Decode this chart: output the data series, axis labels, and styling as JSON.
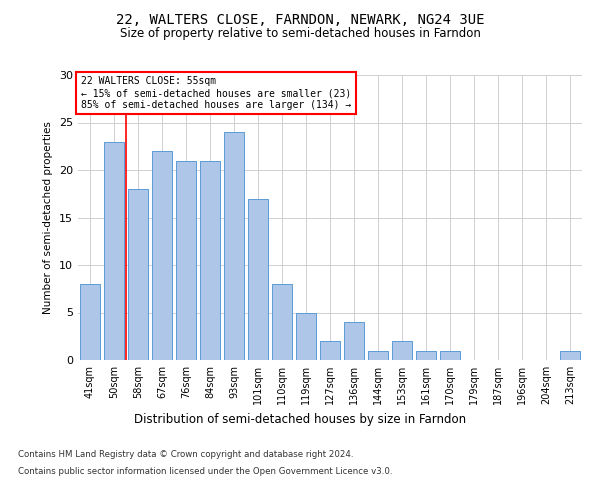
{
  "title": "22, WALTERS CLOSE, FARNDON, NEWARK, NG24 3UE",
  "subtitle": "Size of property relative to semi-detached houses in Farndon",
  "xlabel_bottom": "Distribution of semi-detached houses by size in Farndon",
  "ylabel": "Number of semi-detached properties",
  "categories": [
    "41sqm",
    "50sqm",
    "58sqm",
    "67sqm",
    "76sqm",
    "84sqm",
    "93sqm",
    "101sqm",
    "110sqm",
    "119sqm",
    "127sqm",
    "136sqm",
    "144sqm",
    "153sqm",
    "161sqm",
    "170sqm",
    "179sqm",
    "187sqm",
    "196sqm",
    "204sqm",
    "213sqm"
  ],
  "values": [
    8,
    23,
    18,
    22,
    21,
    21,
    24,
    17,
    8,
    5,
    2,
    4,
    1,
    2,
    1,
    1,
    0,
    0,
    0,
    0,
    1
  ],
  "bar_color": "#aec6e8",
  "bar_edge_color": "#5b9bd5",
  "red_line_x": 1.5,
  "annotation_title": "22 WALTERS CLOSE: 55sqm",
  "annotation_line1": "← 15% of semi-detached houses are smaller (23)",
  "annotation_line2": "85% of semi-detached houses are larger (134) →",
  "footer_line1": "Contains HM Land Registry data © Crown copyright and database right 2024.",
  "footer_line2": "Contains public sector information licensed under the Open Government Licence v3.0.",
  "ylim": [
    0,
    30
  ],
  "yticks": [
    0,
    5,
    10,
    15,
    20,
    25,
    30
  ],
  "grid_color": "#d0d0d0",
  "background_color": "#ffffff",
  "fig_width": 6.0,
  "fig_height": 5.0
}
